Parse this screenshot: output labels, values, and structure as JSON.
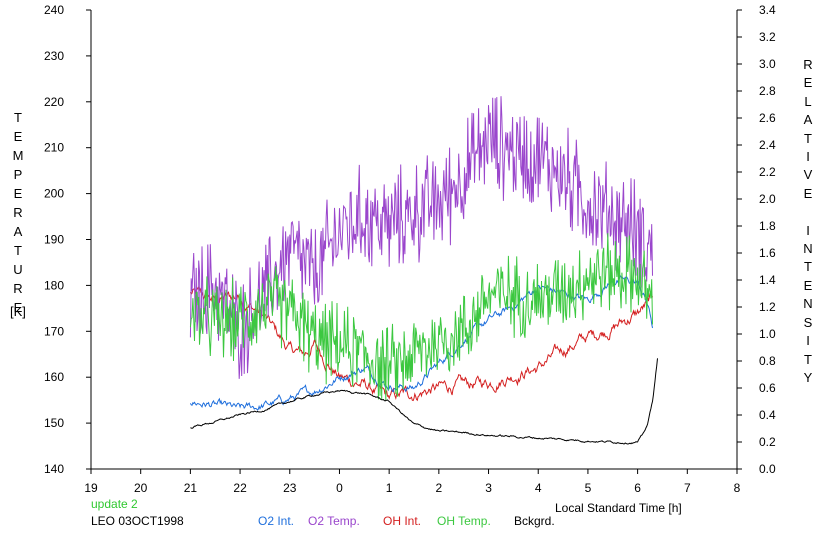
{
  "chart_data": {
    "type": "line",
    "xlabel": "Local Standard Time [h]",
    "x_ticks": [
      "19",
      "20",
      "21",
      "22",
      "23",
      "0",
      "1",
      "2",
      "3",
      "4",
      "5",
      "6",
      "7",
      "8"
    ],
    "left_axis": {
      "label_letters": [
        "T",
        "E",
        "M",
        "P",
        "E",
        "R",
        "A",
        "T",
        "U",
        "R",
        "E"
      ],
      "unit": "[K]",
      "range": [
        140,
        240
      ],
      "ticks": [
        140,
        150,
        160,
        170,
        180,
        190,
        200,
        210,
        220,
        230,
        240
      ]
    },
    "right_axis": {
      "label_letters": [
        "R",
        "E",
        "L",
        "A",
        "T",
        "I",
        "V",
        "E",
        "",
        "I",
        "N",
        "T",
        "E",
        "N",
        "S",
        "I",
        "T",
        "Y"
      ],
      "range": [
        0.0,
        3.4
      ],
      "ticks": [
        "0.0",
        "0.2",
        "0.4",
        "0.6",
        "0.8",
        "1.0",
        "1.2",
        "1.4",
        "1.6",
        "1.8",
        "2.0",
        "2.2",
        "2.4",
        "2.6",
        "2.8",
        "3.0",
        "3.2",
        "3.4"
      ]
    },
    "grid": false,
    "legend_position": "bottom",
    "series": [
      {
        "name": "O2 Int.",
        "axis": "right",
        "color": "#1f6fdc",
        "noise": 0.02,
        "x": [
          21,
          21.5,
          22,
          22.5,
          23,
          23.5,
          24,
          24.5,
          25,
          25.5,
          26,
          26.5,
          27,
          27.5,
          28,
          28.5,
          29,
          29.5,
          30,
          30.2,
          30.3
        ],
        "y": [
          0.5,
          0.47,
          0.44,
          0.47,
          0.52,
          0.58,
          0.68,
          0.75,
          0.62,
          0.6,
          0.78,
          0.96,
          1.1,
          1.2,
          1.35,
          1.3,
          1.25,
          1.4,
          1.38,
          1.22,
          1.05
        ]
      },
      {
        "name": "O2 Temp.",
        "axis": "left",
        "color": "#9a46cc",
        "noise": 9,
        "x": [
          21,
          21.5,
          22,
          22.5,
          23,
          23.5,
          24,
          24.5,
          25,
          25.5,
          26,
          26.5,
          27,
          27.5,
          28,
          28.5,
          29,
          29.5,
          30,
          30.3
        ],
        "y": [
          177,
          180,
          170,
          178,
          188,
          182,
          192,
          195,
          193,
          196,
          198,
          204,
          212,
          209,
          208,
          204,
          198,
          195,
          192,
          187
        ]
      },
      {
        "name": "OH Int.",
        "axis": "right",
        "color": "#d42020",
        "noise": 0.03,
        "x": [
          21,
          21.5,
          22,
          22.5,
          23,
          23.3,
          23.5,
          24,
          24.5,
          25,
          25.3,
          25.5,
          26,
          26.5,
          27,
          27.5,
          28,
          28.5,
          29,
          29.5,
          30,
          30.3
        ],
        "y": [
          1.3,
          1.25,
          1.28,
          1.12,
          0.88,
          0.85,
          0.92,
          0.68,
          0.62,
          0.52,
          0.55,
          0.56,
          0.6,
          0.62,
          0.64,
          0.7,
          0.75,
          0.88,
          0.98,
          1.05,
          1.15,
          1.25
        ]
      },
      {
        "name": "OH Temp.",
        "axis": "left",
        "color": "#3cc840",
        "noise": 7,
        "x": [
          21,
          21.5,
          22,
          22.5,
          23,
          23.5,
          24,
          24.5,
          25,
          25.5,
          26,
          26.5,
          27,
          27.5,
          28,
          28.5,
          29,
          29.5,
          30,
          30.3
        ],
        "y": [
          174,
          172,
          172,
          176,
          175,
          168,
          167,
          165,
          162,
          165,
          168,
          170,
          178,
          178,
          177,
          179,
          182,
          183,
          182,
          176
        ]
      },
      {
        "name": "Bckgrd.",
        "axis": "right",
        "color": "#000000",
        "noise": 0.005,
        "x": [
          21,
          21.5,
          22,
          22.5,
          23,
          23.5,
          24,
          24.5,
          25,
          25.5,
          26,
          26.5,
          27,
          27.5,
          28,
          28.5,
          29,
          29.5,
          30,
          30.1,
          30.2,
          30.3,
          30.4
        ],
        "y": [
          0.31,
          0.35,
          0.4,
          0.44,
          0.5,
          0.55,
          0.58,
          0.56,
          0.5,
          0.33,
          0.28,
          0.27,
          0.25,
          0.24,
          0.23,
          0.22,
          0.21,
          0.2,
          0.2,
          0.25,
          0.33,
          0.5,
          0.82
        ]
      }
    ]
  },
  "footer": {
    "update_text": "update 2",
    "station_text": "LEO 03OCT1998"
  }
}
